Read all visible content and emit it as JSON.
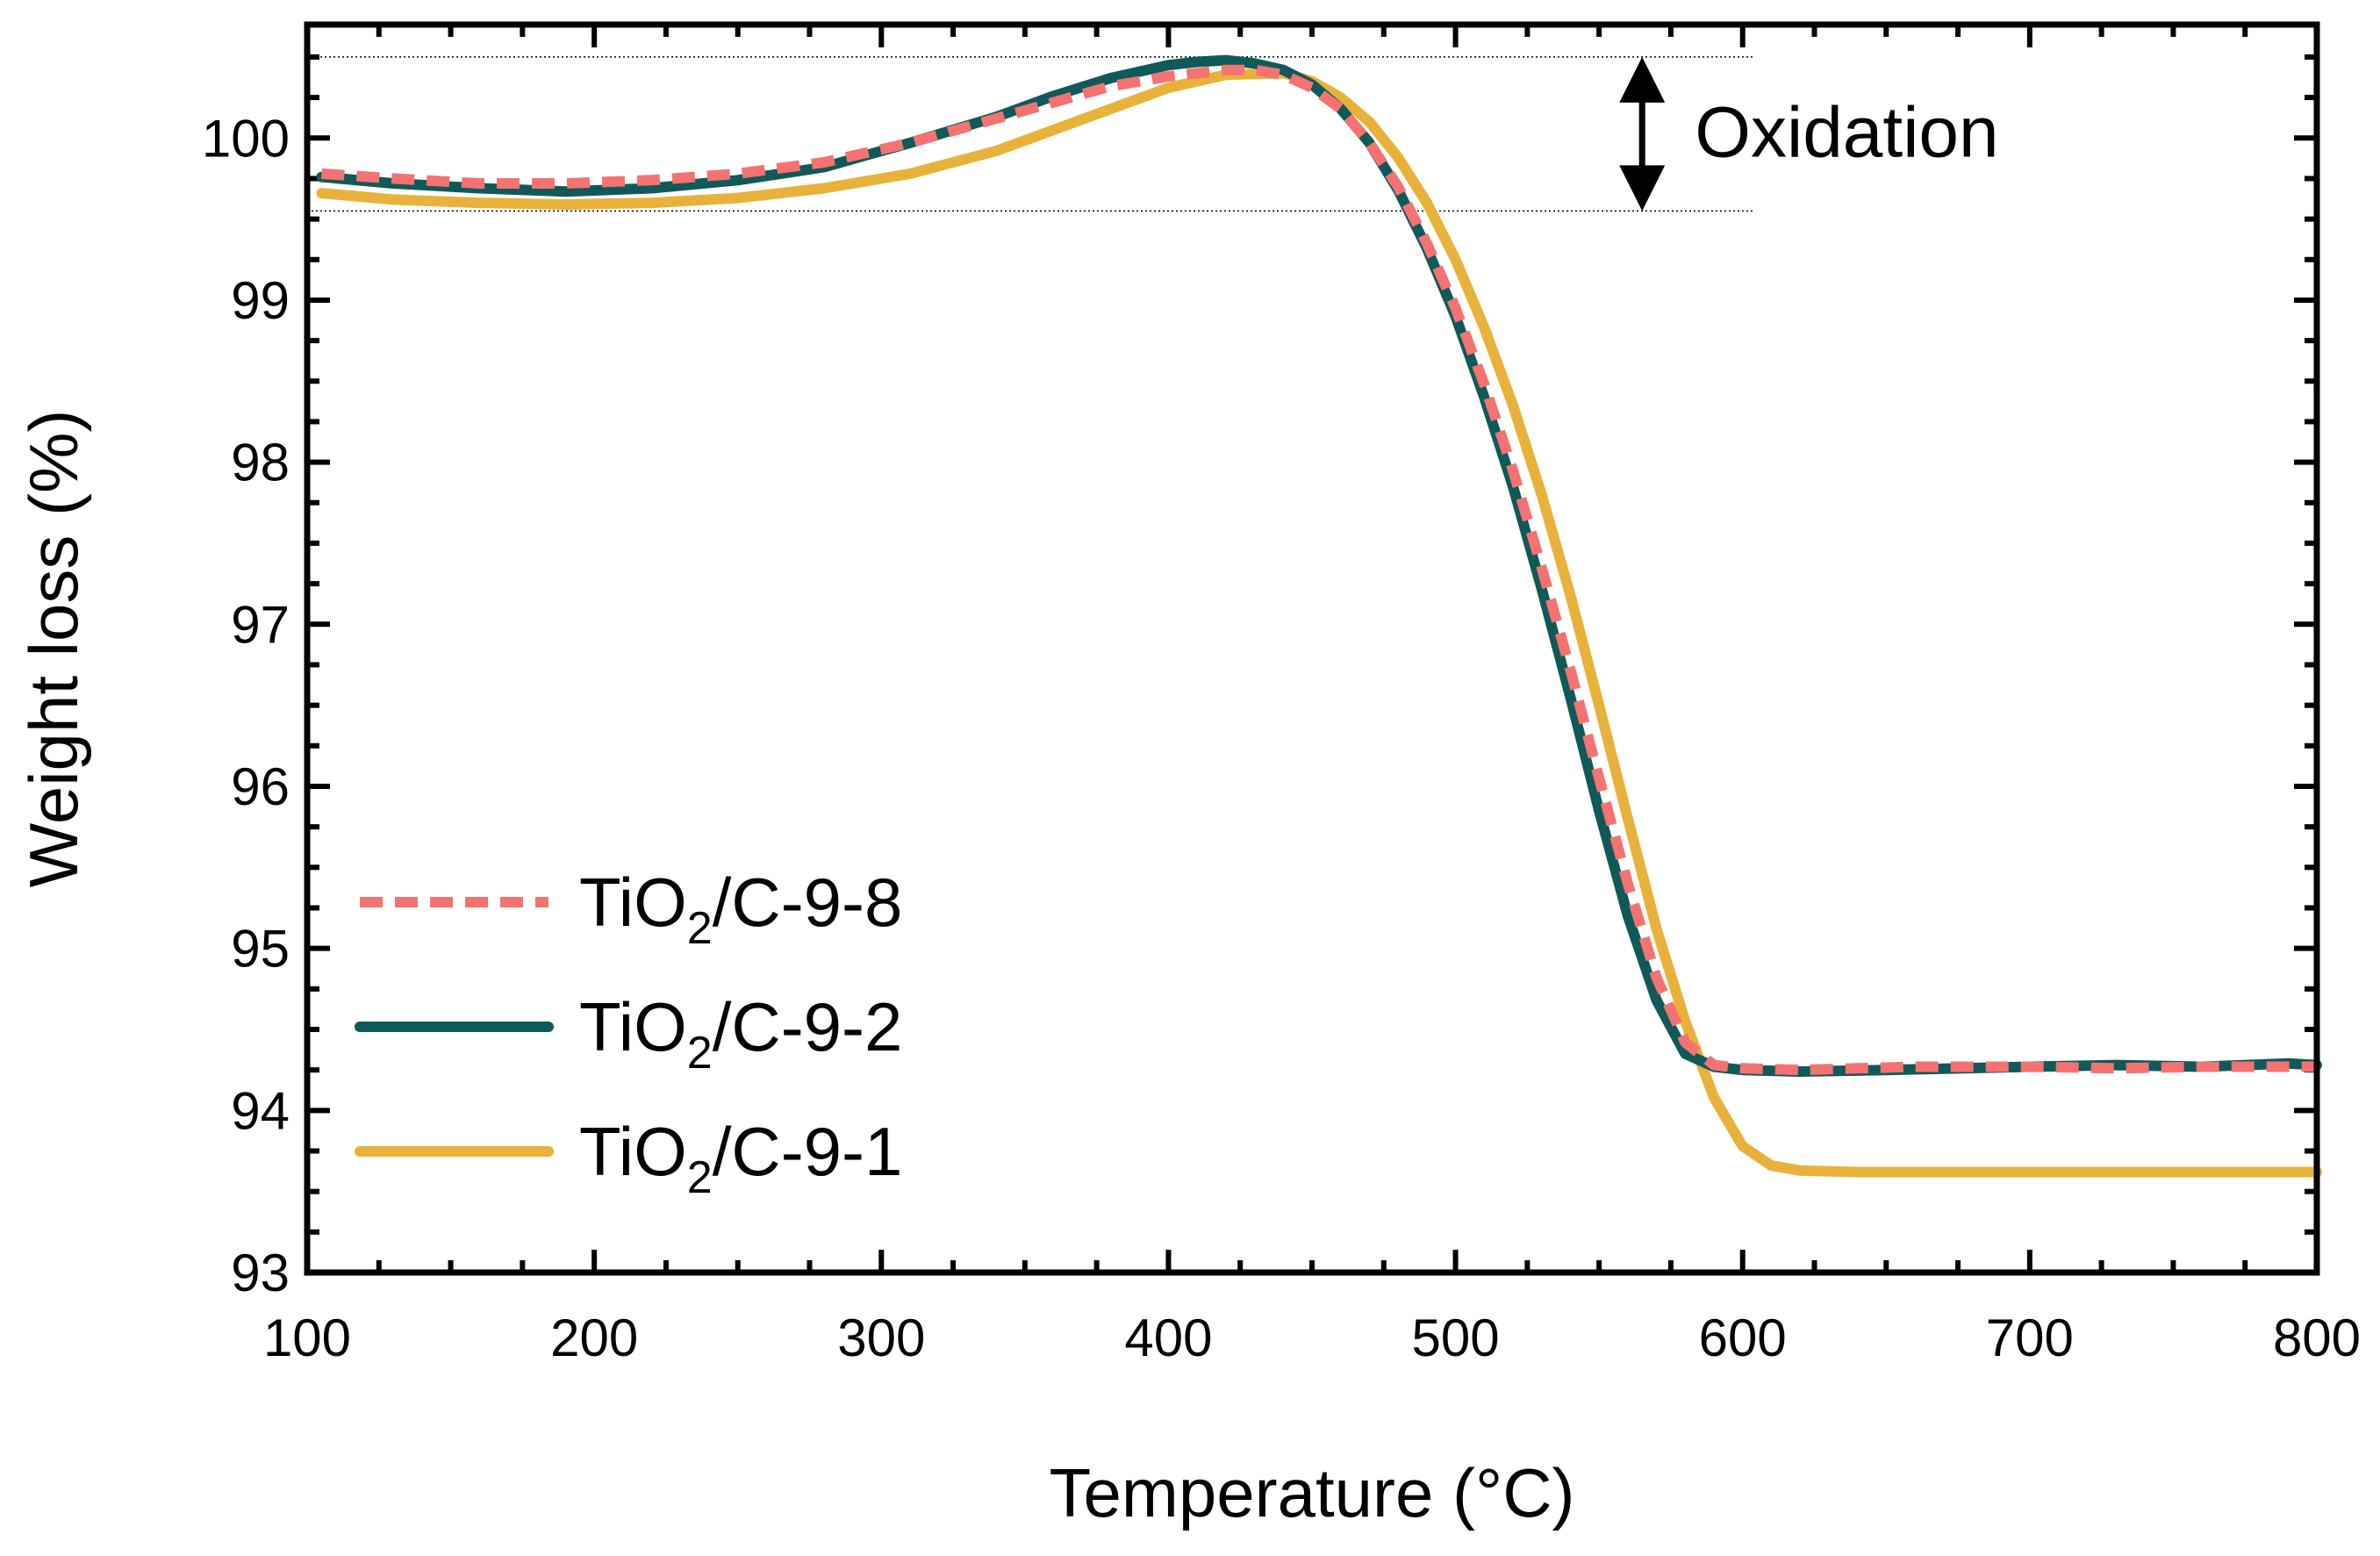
{
  "chart_data": {
    "type": "line",
    "title": "",
    "xlabel": "Temperature (°C)",
    "ylabel": "Weight loss (%)",
    "xlim": [
      100,
      800
    ],
    "ylim": [
      93,
      100.7
    ],
    "xticks": [
      100,
      200,
      300,
      400,
      500,
      600,
      700,
      800
    ],
    "yticks": [
      93,
      94,
      95,
      96,
      97,
      98,
      99,
      100
    ],
    "xtick_labels": [
      "100",
      "200",
      "300",
      "400",
      "500",
      "600",
      "700",
      "800"
    ],
    "ytick_labels": [
      "93",
      "94",
      "95",
      "96",
      "97",
      "98",
      "99",
      "100"
    ],
    "grid": false,
    "legend_position": "bottom-left",
    "series": [
      {
        "name": "TiO2/C-9-8",
        "legend_main": "TiO",
        "legend_sub": "2",
        "legend_rest": "/C-9-8",
        "color": "#f47272",
        "style": "dashed",
        "x": [
          105,
          130,
          160,
          190,
          220,
          250,
          280,
          310,
          340,
          360,
          380,
          400,
          420,
          430,
          440,
          450,
          460,
          470,
          480,
          490,
          500,
          510,
          520,
          530,
          540,
          550,
          560,
          570,
          580,
          590,
          600,
          620,
          640,
          660,
          700,
          730,
          760,
          800
        ],
        "y": [
          99.78,
          99.75,
          99.72,
          99.72,
          99.74,
          99.78,
          99.85,
          99.97,
          100.12,
          100.22,
          100.32,
          100.38,
          100.42,
          100.42,
          100.39,
          100.31,
          100.18,
          99.97,
          99.7,
          99.35,
          98.95,
          98.48,
          97.95,
          97.35,
          96.72,
          96.05,
          95.4,
          94.82,
          94.42,
          94.28,
          94.26,
          94.25,
          94.26,
          94.27,
          94.27,
          94.26,
          94.27,
          94.27
        ]
      },
      {
        "name": "TiO2/C-9-2",
        "legend_main": "TiO",
        "legend_sub": "2",
        "legend_rest": "/C-9-2",
        "color": "#0f5a58",
        "style": "solid",
        "x": [
          105,
          130,
          160,
          190,
          220,
          250,
          280,
          310,
          340,
          360,
          380,
          400,
          410,
          420,
          430,
          440,
          450,
          460,
          470,
          480,
          490,
          500,
          510,
          520,
          530,
          540,
          550,
          560,
          570,
          580,
          590,
          600,
          620,
          650,
          700,
          730,
          760,
          790,
          800
        ],
        "y": [
          99.76,
          99.72,
          99.69,
          99.67,
          99.69,
          99.74,
          99.82,
          99.97,
          100.13,
          100.26,
          100.37,
          100.45,
          100.47,
          100.48,
          100.46,
          100.42,
          100.33,
          100.18,
          99.97,
          99.68,
          99.32,
          98.9,
          98.4,
          97.85,
          97.22,
          96.55,
          95.85,
          95.2,
          94.68,
          94.35,
          94.27,
          94.25,
          94.24,
          94.25,
          94.27,
          94.28,
          94.27,
          94.29,
          94.28
        ]
      },
      {
        "name": "TiO2/C-9-1",
        "legend_main": "TiO",
        "legend_sub": "2",
        "legend_rest": "/C-9-1",
        "color": "#e8b23a",
        "style": "solid",
        "x": [
          105,
          130,
          160,
          190,
          220,
          250,
          280,
          310,
          340,
          360,
          380,
          400,
          420,
          440,
          450,
          460,
          470,
          480,
          490,
          500,
          510,
          520,
          530,
          540,
          550,
          560,
          570,
          580,
          590,
          600,
          610,
          620,
          640,
          680,
          720,
          760,
          800
        ],
        "y": [
          99.66,
          99.62,
          99.6,
          99.59,
          99.6,
          99.63,
          99.69,
          99.78,
          99.92,
          100.05,
          100.18,
          100.31,
          100.39,
          100.4,
          100.35,
          100.25,
          100.1,
          99.88,
          99.6,
          99.25,
          98.83,
          98.35,
          97.8,
          97.18,
          96.5,
          95.8,
          95.12,
          94.55,
          94.08,
          93.78,
          93.66,
          93.63,
          93.62,
          93.62,
          93.62,
          93.62,
          93.62
        ]
      }
    ],
    "annotations": [
      {
        "text": "Oxidation",
        "arrow": "double-vertical",
        "span_y": [
          99.55,
          100.5
        ],
        "at_x": 565
      }
    ]
  }
}
